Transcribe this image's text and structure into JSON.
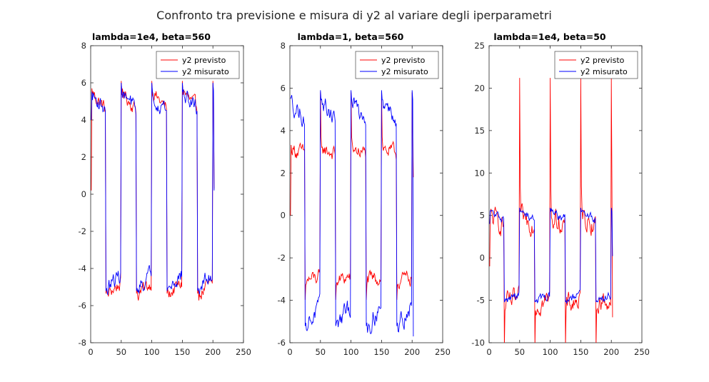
{
  "figure": {
    "title": "Confronto tra previsione e misura di y2 al variare degli iperparametri"
  },
  "chart_data": [
    {
      "type": "line",
      "title": "lambda=1e4, beta=560",
      "xlim": [
        0,
        250
      ],
      "ylim": [
        -8,
        8
      ],
      "xticks": [
        0,
        50,
        100,
        150,
        200,
        250
      ],
      "yticks": [
        -8,
        -6,
        -4,
        -2,
        0,
        2,
        4,
        6,
        8
      ],
      "legend": "top-right",
      "period": 50,
      "x_range": [
        1,
        202
      ],
      "series": [
        {
          "name": "y2 previsto",
          "color": "#ff0000",
          "start": 0.2,
          "end": 0.3,
          "high_level": 5.1,
          "high_start": 6.5,
          "high_end": 4.6,
          "low_level": -5.0,
          "low_start": -6.3,
          "low_end": -4.8,
          "noise": 0.3,
          "spike": 1.0,
          "fall_offset": 2,
          "rise_offset": 0
        },
        {
          "name": "y2 misurato",
          "color": "#0000ff",
          "start": 4.0,
          "end": 0.2,
          "high_level": 5.4,
          "high_start": 5.6,
          "high_end": 4.6,
          "low_level": -5.0,
          "low_start": -5.6,
          "low_end": -4.3,
          "noise": 0.35,
          "spike": 0.6,
          "fall_offset": 0,
          "rise_offset": 0
        }
      ]
    },
    {
      "type": "line",
      "title": "lambda=1, beta=560",
      "xlim": [
        0,
        250
      ],
      "ylim": [
        -6,
        8
      ],
      "xticks": [
        0,
        50,
        100,
        150,
        200,
        250
      ],
      "yticks": [
        -6,
        -4,
        -2,
        0,
        2,
        4,
        6,
        8
      ],
      "legend": "top-right",
      "period": 50,
      "x_range": [
        1,
        202
      ],
      "series": [
        {
          "name": "y2 previsto",
          "color": "#ff0000",
          "start": 0.0,
          "end": 1.8,
          "high_level": 3.0,
          "high_start": 3.5,
          "high_end": 2.9,
          "low_level": -3.0,
          "low_start": -3.3,
          "low_end": -2.9,
          "noise": 0.28,
          "spike": 2.8,
          "fall_offset": 2,
          "rise_offset": 0
        },
        {
          "name": "y2 misurato",
          "color": "#0000ff",
          "start": 5.5,
          "end": -5.7,
          "high_level": 5.3,
          "high_start": 5.8,
          "high_end": 4.6,
          "low_level": -5.0,
          "low_start": -5.9,
          "low_end": -4.3,
          "noise": 0.35,
          "spike": 0.6,
          "fall_offset": 0,
          "rise_offset": 0
        }
      ]
    },
    {
      "type": "line",
      "title": "lambda=1e4, beta=50",
      "xlim": [
        0,
        250
      ],
      "ylim": [
        -10,
        25
      ],
      "xticks": [
        0,
        50,
        100,
        150,
        200,
        250
      ],
      "yticks": [
        -10,
        -5,
        0,
        5,
        10,
        15,
        20,
        25
      ],
      "legend": "top-right",
      "period": 50,
      "x_range": [
        1,
        202
      ],
      "series": [
        {
          "name": "y2 previsto",
          "color": "#ff0000",
          "start": -1.0,
          "end": -7.0,
          "high_level": 4.2,
          "high_start": 6.0,
          "high_end": 4.0,
          "low_level": -4.5,
          "low_start": -7.0,
          "low_end": -5.0,
          "noise": 1.0,
          "spike": 17.0,
          "fall_offset": 2,
          "rise_offset": 0
        },
        {
          "name": "y2 misurato",
          "color": "#0000ff",
          "start": 4.0,
          "end": 0.2,
          "high_level": 5.3,
          "high_start": 5.6,
          "high_end": 4.6,
          "low_level": -5.0,
          "low_start": -5.6,
          "low_end": -4.3,
          "noise": 0.4,
          "spike": 0.6,
          "fall_offset": 0,
          "rise_offset": 0
        }
      ]
    }
  ]
}
